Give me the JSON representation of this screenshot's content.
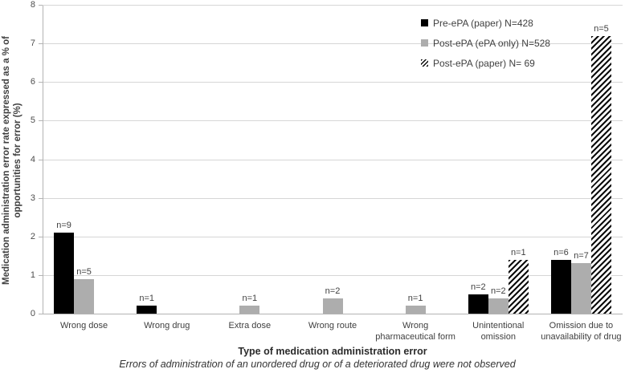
{
  "chart_data": {
    "type": "bar",
    "title": "",
    "ylabel": "Medication administration error rate expressed as a % of opportunities for error (%)",
    "ylabel_lines": [
      "Medication administration error rate expressed as a % of",
      "opportunities for error  (%)"
    ],
    "xlabel": "Type of medication administration error",
    "footnote": "Errors of administration of an unordered drug or of a deteriorated drug were not observed",
    "ylim": [
      0,
      8
    ],
    "ytick_step": 1,
    "grid": true,
    "legend_position": "top-right-inside",
    "categories": [
      "Wrong dose",
      "Wrong drug",
      "Extra dose",
      "Wrong route",
      "Wrong pharmaceutical form",
      "Unintentional omission",
      "Omission due to unavailability of drug"
    ],
    "category_label_lines": [
      [
        "Wrong dose"
      ],
      [
        "Wrong drug"
      ],
      [
        "Extra dose"
      ],
      [
        "Wrong route"
      ],
      [
        "Wrong",
        "pharmaceutical form"
      ],
      [
        "Unintentional",
        "omission"
      ],
      [
        "Omission due to",
        "unavailability of drug"
      ]
    ],
    "series": [
      {
        "name": "Pre-ePA (paper) N=428",
        "key": "pre-epa-paper",
        "style": "solid",
        "color": "#000000",
        "values": [
          2.1,
          0.2,
          null,
          null,
          null,
          0.5,
          1.4
        ],
        "bar_labels": [
          "n=9",
          "n=1",
          null,
          null,
          null,
          "n=2",
          "n=6"
        ]
      },
      {
        "name": "Post-ePA (ePA only) N=528",
        "key": "post-epa-epa-only",
        "style": "solid",
        "color": "#adadad",
        "values": [
          0.9,
          null,
          0.2,
          0.4,
          0.2,
          0.4,
          1.3
        ],
        "bar_labels": [
          "n=5",
          null,
          "n=1",
          "n=2",
          "n=1",
          "n=2",
          "n=7"
        ]
      },
      {
        "name": "Post-ePA (paper) N= 69",
        "key": "post-epa-paper",
        "style": "hatched",
        "color": "#000000",
        "values": [
          null,
          null,
          null,
          null,
          null,
          1.4,
          7.2
        ],
        "bar_labels": [
          null,
          null,
          null,
          null,
          null,
          "n=1",
          "n=5"
        ]
      }
    ],
    "colors": {
      "grid": "#d6d6d6",
      "axis": "#b3b3b3",
      "text": "#3f3f3f",
      "tick_text": "#4d4d4d"
    }
  }
}
